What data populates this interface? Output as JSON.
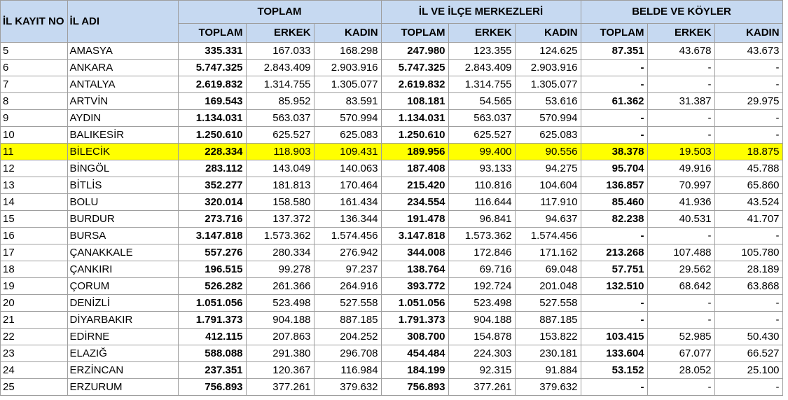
{
  "header": {
    "no": "İL KAYIT NO",
    "name": "İL ADI",
    "group1": "TOPLAM",
    "group2": "İL VE İLÇE MERKEZLERİ",
    "group3": "BELDE VE KÖYLER",
    "sub": [
      "TOPLAM",
      "ERKEK",
      "KADIN",
      "TOPLAM",
      "ERKEK",
      "KADIN",
      "TOPLAM",
      "ERKEK",
      "KADIN"
    ]
  },
  "highlight_color": "#ffff00",
  "header_bg": "#c6d9f1",
  "highlighted_row": "11",
  "rows": [
    {
      "no": "5",
      "name": "AMASYA",
      "c": [
        "335.331",
        "167.033",
        "168.298",
        "247.980",
        "123.355",
        "124.625",
        "87.351",
        "43.678",
        "43.673"
      ]
    },
    {
      "no": "6",
      "name": "ANKARA",
      "c": [
        "5.747.325",
        "2.843.409",
        "2.903.916",
        "5.747.325",
        "2.843.409",
        "2.903.916",
        "-",
        "-",
        "-"
      ]
    },
    {
      "no": "7",
      "name": "ANTALYA",
      "c": [
        "2.619.832",
        "1.314.755",
        "1.305.077",
        "2.619.832",
        "1.314.755",
        "1.305.077",
        "-",
        "-",
        "-"
      ]
    },
    {
      "no": "8",
      "name": "ARTVİN",
      "c": [
        "169.543",
        "85.952",
        "83.591",
        "108.181",
        "54.565",
        "53.616",
        "61.362",
        "31.387",
        "29.975"
      ]
    },
    {
      "no": "9",
      "name": "AYDIN",
      "c": [
        "1.134.031",
        "563.037",
        "570.994",
        "1.134.031",
        "563.037",
        "570.994",
        "-",
        "-",
        "-"
      ]
    },
    {
      "no": "10",
      "name": "BALIKESİR",
      "c": [
        "1.250.610",
        "625.527",
        "625.083",
        "1.250.610",
        "625.527",
        "625.083",
        "-",
        "-",
        "-"
      ]
    },
    {
      "no": "11",
      "name": "BİLECİK",
      "c": [
        "228.334",
        "118.903",
        "109.431",
        "189.956",
        "99.400",
        "90.556",
        "38.378",
        "19.503",
        "18.875"
      ]
    },
    {
      "no": "12",
      "name": "BİNGÖL",
      "c": [
        "283.112",
        "143.049",
        "140.063",
        "187.408",
        "93.133",
        "94.275",
        "95.704",
        "49.916",
        "45.788"
      ]
    },
    {
      "no": "13",
      "name": "BİTLİS",
      "c": [
        "352.277",
        "181.813",
        "170.464",
        "215.420",
        "110.816",
        "104.604",
        "136.857",
        "70.997",
        "65.860"
      ]
    },
    {
      "no": "14",
      "name": "BOLU",
      "c": [
        "320.014",
        "158.580",
        "161.434",
        "234.554",
        "116.644",
        "117.910",
        "85.460",
        "41.936",
        "43.524"
      ]
    },
    {
      "no": "15",
      "name": "BURDUR",
      "c": [
        "273.716",
        "137.372",
        "136.344",
        "191.478",
        "96.841",
        "94.637",
        "82.238",
        "40.531",
        "41.707"
      ]
    },
    {
      "no": "16",
      "name": "BURSA",
      "c": [
        "3.147.818",
        "1.573.362",
        "1.574.456",
        "3.147.818",
        "1.573.362",
        "1.574.456",
        "-",
        "-",
        "-"
      ]
    },
    {
      "no": "17",
      "name": "ÇANAKKALE",
      "c": [
        "557.276",
        "280.334",
        "276.942",
        "344.008",
        "172.846",
        "171.162",
        "213.268",
        "107.488",
        "105.780"
      ]
    },
    {
      "no": "18",
      "name": "ÇANKIRI",
      "c": [
        "196.515",
        "99.278",
        "97.237",
        "138.764",
        "69.716",
        "69.048",
        "57.751",
        "29.562",
        "28.189"
      ]
    },
    {
      "no": "19",
      "name": "ÇORUM",
      "c": [
        "526.282",
        "261.366",
        "264.916",
        "393.772",
        "192.724",
        "201.048",
        "132.510",
        "68.642",
        "63.868"
      ]
    },
    {
      "no": "20",
      "name": "DENİZLİ",
      "c": [
        "1.051.056",
        "523.498",
        "527.558",
        "1.051.056",
        "523.498",
        "527.558",
        "-",
        "-",
        "-"
      ]
    },
    {
      "no": "21",
      "name": "DİYARBAKIR",
      "c": [
        "1.791.373",
        "904.188",
        "887.185",
        "1.791.373",
        "904.188",
        "887.185",
        "-",
        "-",
        "-"
      ]
    },
    {
      "no": "22",
      "name": "EDİRNE",
      "c": [
        "412.115",
        "207.863",
        "204.252",
        "308.700",
        "154.878",
        "153.822",
        "103.415",
        "52.985",
        "50.430"
      ]
    },
    {
      "no": "23",
      "name": "ELAZIĞ",
      "c": [
        "588.088",
        "291.380",
        "296.708",
        "454.484",
        "224.303",
        "230.181",
        "133.604",
        "67.077",
        "66.527"
      ]
    },
    {
      "no": "24",
      "name": "ERZİNCAN",
      "c": [
        "237.351",
        "120.367",
        "116.984",
        "184.199",
        "92.315",
        "91.884",
        "53.152",
        "28.052",
        "25.100"
      ]
    },
    {
      "no": "25",
      "name": "ERZURUM",
      "c": [
        "756.893",
        "377.261",
        "379.632",
        "756.893",
        "377.261",
        "379.632",
        "-",
        "-",
        "-"
      ]
    }
  ]
}
